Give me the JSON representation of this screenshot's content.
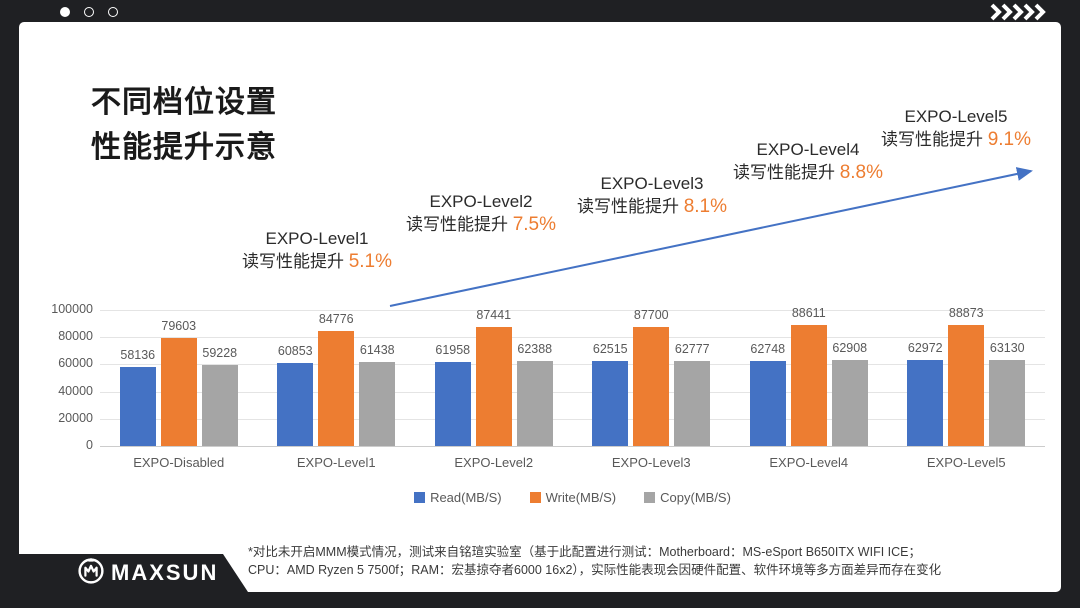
{
  "title": {
    "line1": "不同档位设置",
    "line2": "性能提升示意"
  },
  "annotations": [
    {
      "level": "EXPO-Level1",
      "label": "读写性能提升",
      "percent": "5.1%"
    },
    {
      "level": "EXPO-Level2",
      "label": "读写性能提升",
      "percent": "7.5%"
    },
    {
      "level": "EXPO-Level3",
      "label": "读写性能提升",
      "percent": "8.1%"
    },
    {
      "level": "EXPO-Level4",
      "label": "读写性能提升",
      "percent": "8.8%"
    },
    {
      "level": "EXPO-Level5",
      "label": "读写性能提升",
      "percent": "9.1%"
    }
  ],
  "chart_data": {
    "type": "bar",
    "categories": [
      "EXPO-Disabled",
      "EXPO-Level1",
      "EXPO-Level2",
      "EXPO-Level3",
      "EXPO-Level4",
      "EXPO-Level5"
    ],
    "series": [
      {
        "name": "Read(MB/S)",
        "color": "#4472C4",
        "values": [
          58136,
          60853,
          61958,
          62515,
          62748,
          62972
        ]
      },
      {
        "name": "Write(MB/S)",
        "color": "#ED7D31",
        "values": [
          79603,
          84776,
          87441,
          87700,
          88611,
          88873
        ]
      },
      {
        "name": "Copy(MB/S)",
        "color": "#A5A5A5",
        "values": [
          59228,
          61438,
          62388,
          62777,
          62908,
          63130
        ]
      }
    ],
    "title": "不同档位设置性能提升示意",
    "xlabel": "",
    "ylabel": "",
    "ylim": [
      0,
      100000
    ],
    "yticks": [
      0,
      20000,
      40000,
      60000,
      80000,
      100000
    ],
    "grid": true,
    "legend_position": "bottom"
  },
  "colors": {
    "accent_orange": "#ED7D31",
    "arrow_blue": "#4472C4",
    "frame_dark": "#1f2023"
  },
  "footer": {
    "brand": "MAXSUN",
    "note_line1": "*对比未开启MMM模式情况，测试来自铭瑄实验室（基于此配置进行测试：Motherboard：MS-eSport B650ITX WIFI ICE；",
    "note_line2": "CPU：AMD Ryzen 5 7500f；RAM：宏基掠夺者6000 16x2），实际性能表现会因硬件配置、软件环境等多方面差异而存在变化"
  }
}
